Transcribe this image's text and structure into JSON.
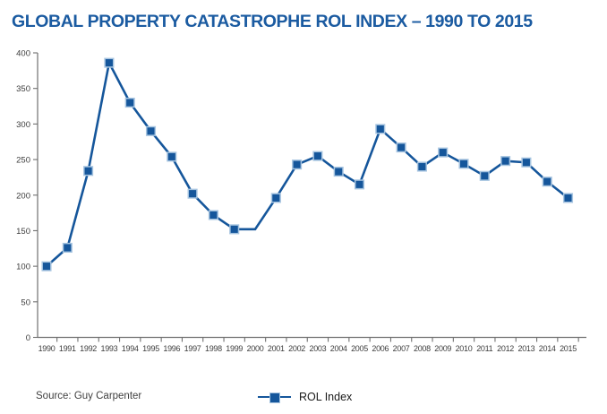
{
  "page": {
    "title": "GLOBAL PROPERTY CATASTROPHE ROL INDEX – 1990 TO 2015",
    "source": "Source: Guy Carpenter"
  },
  "chart_data": {
    "type": "line",
    "title": "GLOBAL PROPERTY CATASTROPHE ROL INDEX – 1990 TO 2015",
    "xlabel": "",
    "ylabel": "",
    "categories": [
      "1990",
      "1991",
      "1992",
      "1993",
      "1994",
      "1995",
      "1996",
      "1997",
      "1998",
      "1999",
      "2000",
      "2001",
      "2002",
      "2003",
      "2004",
      "2005",
      "2006",
      "2007",
      "2008",
      "2009",
      "2010",
      "2011",
      "2012",
      "2013",
      "2014",
      "2015"
    ],
    "series": [
      {
        "name": "ROL Index",
        "values": [
          100,
          126,
          234,
          386,
          330,
          290,
          254,
          202,
          172,
          152,
          152,
          196,
          243,
          255,
          233,
          215,
          293,
          267,
          240,
          260,
          244,
          227,
          248,
          246,
          219,
          196
        ]
      }
    ],
    "ylim": [
      0,
      400
    ],
    "y_ticks": [
      0,
      50,
      100,
      150,
      200,
      250,
      300,
      350,
      400
    ],
    "grid": false,
    "marker": "square",
    "marker_hidden_categories": [
      "2000"
    ],
    "legend_label": "ROL Index",
    "legend_position": "bottom-center",
    "colors": {
      "line": "#15569b",
      "marker_fill": "#15569b",
      "marker_edge": "#a6c4e0",
      "title": "#1b5ba1",
      "axis": "#707070",
      "tick_label": "#3d3d3d"
    }
  }
}
